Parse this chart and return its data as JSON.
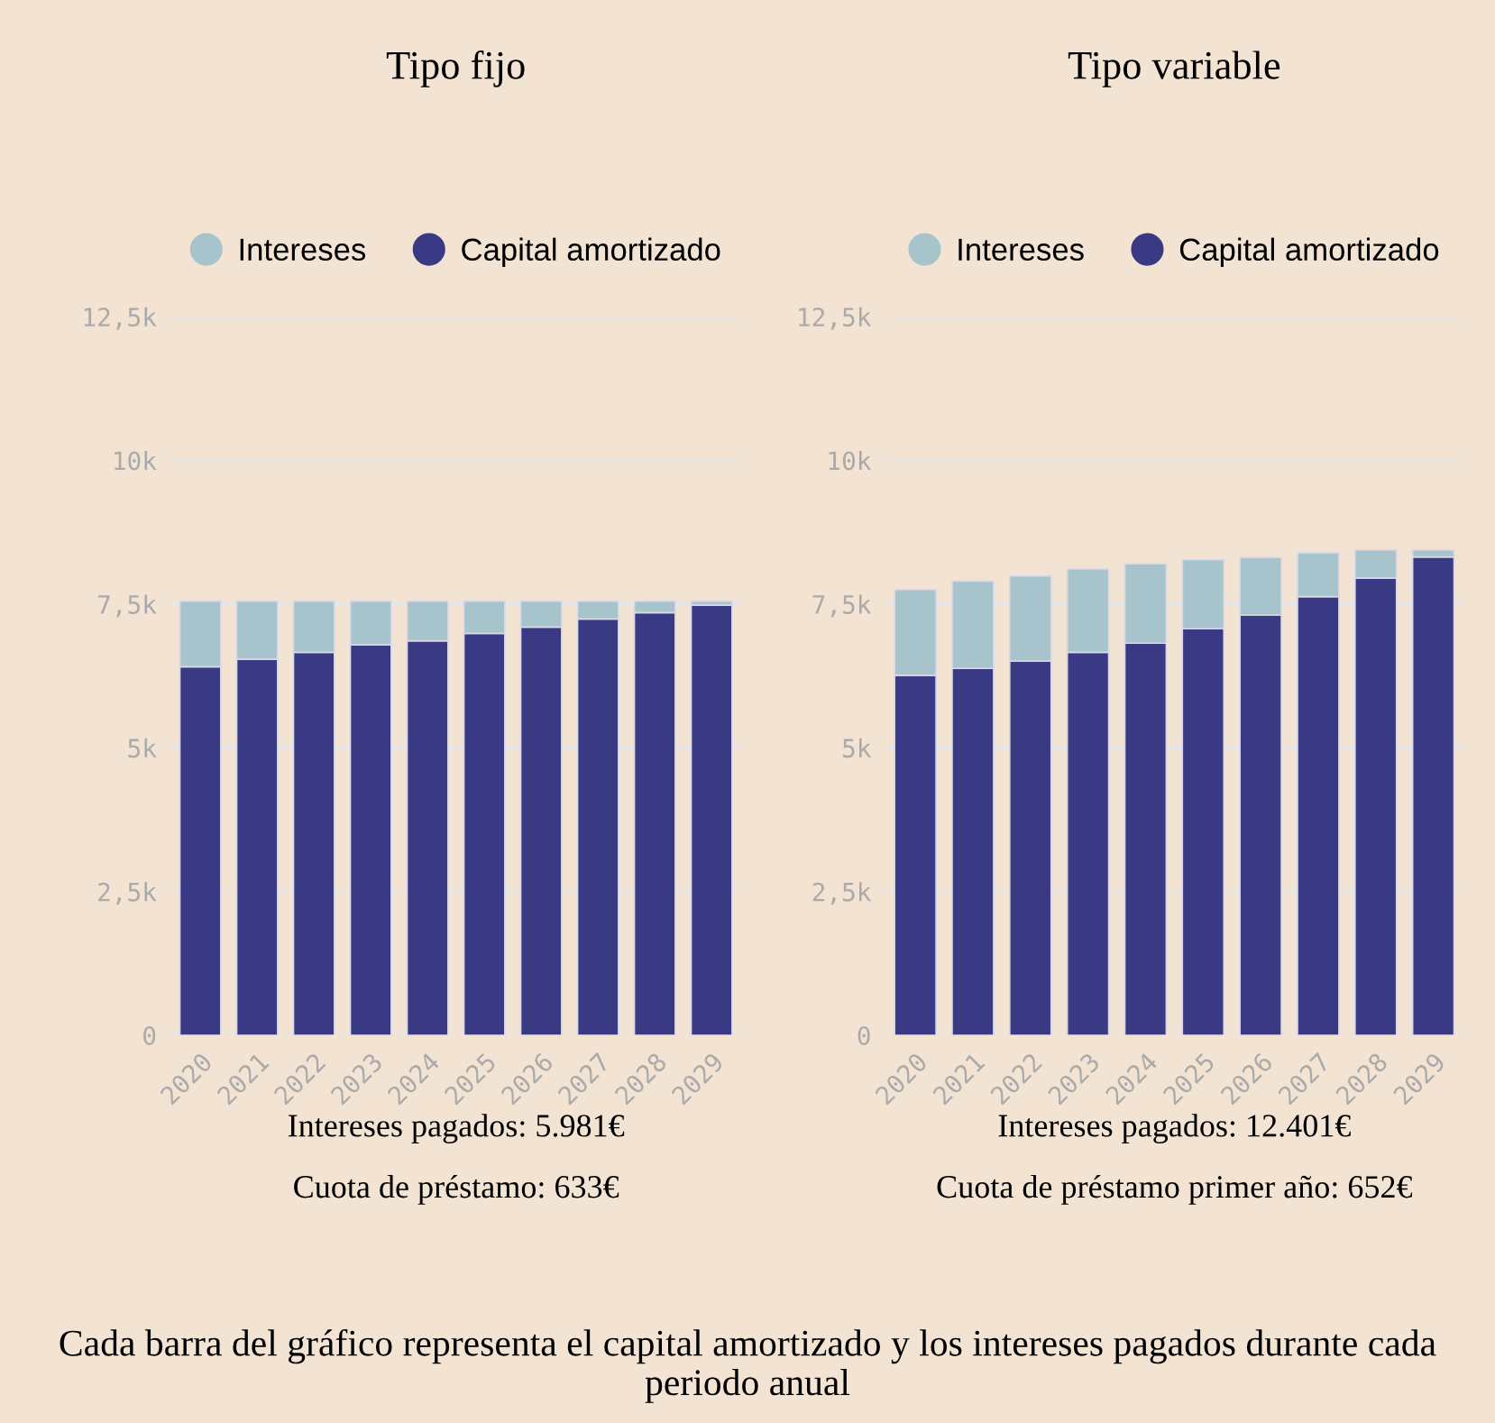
{
  "chart_data": [
    {
      "type": "bar",
      "title": "Tipo fijo",
      "stacked": true,
      "categories": [
        "2020",
        "2021",
        "2022",
        "2023",
        "2024",
        "2025",
        "2026",
        "2027",
        "2028",
        "2029"
      ],
      "series": [
        {
          "name": "Capital amortizado",
          "color": "#393a83",
          "values": [
            6410,
            6540,
            6660,
            6790,
            6860,
            6990,
            7100,
            7240,
            7350,
            7480
          ]
        },
        {
          "name": "Intereses",
          "color": "#a7c4cc",
          "values": [
            1140,
            1010,
            890,
            760,
            690,
            560,
            450,
            310,
            200,
            70
          ]
        }
      ],
      "ylim": [
        0,
        12500
      ],
      "yticks": [
        {
          "value": 0,
          "label": "0"
        },
        {
          "value": 2500,
          "label": "2,5k"
        },
        {
          "value": 5000,
          "label": "5k"
        },
        {
          "value": 7500,
          "label": "7,5k"
        },
        {
          "value": 10000,
          "label": "10k"
        },
        {
          "value": 12500,
          "label": "12,5k"
        }
      ],
      "grid": "y",
      "legend": "top",
      "annotations": [
        "Intereses pagados: 5.981€",
        "Cuota de préstamo: 633€"
      ]
    },
    {
      "type": "bar",
      "title": "Tipo variable",
      "stacked": true,
      "categories": [
        "2020",
        "2021",
        "2022",
        "2023",
        "2024",
        "2025",
        "2026",
        "2027",
        "2028",
        "2029"
      ],
      "series": [
        {
          "name": "Capital amortizado",
          "color": "#393a83",
          "values": [
            6260,
            6380,
            6510,
            6660,
            6820,
            7070,
            7310,
            7630,
            7950,
            8320
          ]
        },
        {
          "name": "Intereses",
          "color": "#a7c4cc",
          "values": [
            1490,
            1520,
            1480,
            1450,
            1380,
            1200,
            1000,
            760,
            490,
            120
          ]
        }
      ],
      "ylim": [
        0,
        12500
      ],
      "yticks": [
        {
          "value": 0,
          "label": "0"
        },
        {
          "value": 2500,
          "label": "2,5k"
        },
        {
          "value": 5000,
          "label": "5k"
        },
        {
          "value": 7500,
          "label": "7,5k"
        },
        {
          "value": 10000,
          "label": "10k"
        },
        {
          "value": 12500,
          "label": "12,5k"
        }
      ],
      "grid": "y",
      "legend": "top",
      "annotations": [
        "Intereses pagados: 12.401€",
        "Cuota de préstamo primer año: 652€"
      ]
    },
    {
      "type": "other",
      "annotations": [
        "Cada barra del gráfico representa el capital amortizado y los intereses pagados durante cada periodo anual"
      ]
    }
  ]
}
